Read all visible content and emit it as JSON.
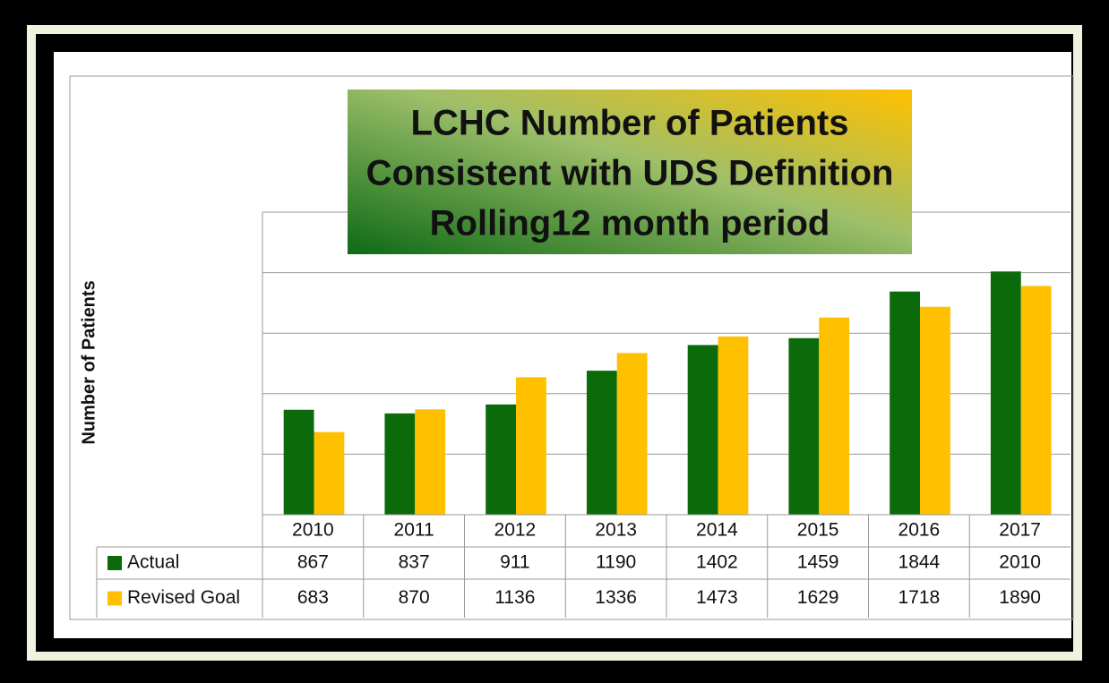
{
  "chart_data": {
    "type": "bar",
    "title": [
      "LCHC Number of Patients",
      "Consistent with UDS Definition",
      "Rolling12 month period"
    ],
    "y_label": "Number of Patients",
    "categories": [
      "2010",
      "2011",
      "2012",
      "2013",
      "2014",
      "2015",
      "2016",
      "2017"
    ],
    "series": [
      {
        "name": "Actual",
        "color": "#0b6b0b",
        "values": [
          867,
          837,
          911,
          1190,
          1402,
          1459,
          1844,
          2010
        ]
      },
      {
        "name": "Revised Goal",
        "color": "#ffc000",
        "values": [
          683,
          870,
          1136,
          1336,
          1473,
          1629,
          1718,
          1890
        ]
      }
    ],
    "ylim": [
      0,
      2500
    ],
    "yticks": [
      0,
      500,
      1000,
      1500,
      2000,
      2500
    ],
    "grid": true
  }
}
